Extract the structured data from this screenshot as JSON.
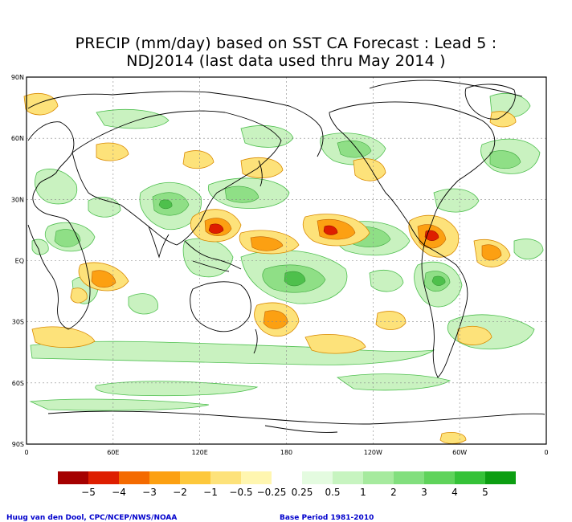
{
  "title": {
    "line1": "PRECIP (mm/day) based on SST CA Forecast : Lead 5 :",
    "line2": "NDJ2014 (last data used thru May 2014 )"
  },
  "axes": {
    "lat_labels": [
      "90N",
      "60N",
      "30N",
      "EQ",
      "30S",
      "60S",
      "90S"
    ],
    "lon_labels": [
      "0",
      "60E",
      "120E",
      "180",
      "120W",
      "60W",
      "0"
    ]
  },
  "legend": {
    "colors": [
      "#a50000",
      "#de1e00",
      "#f46a00",
      "#fca012",
      "#fdc83c",
      "#fde27a",
      "#fff6b0",
      "#ffffff",
      "#e4fbe0",
      "#c7f4c0",
      "#a6ea9e",
      "#82df7e",
      "#5fd35b",
      "#35c238",
      "#0c9e12"
    ],
    "labels": [
      "−5",
      "−4",
      "−3",
      "−2",
      "−1",
      "−0.5",
      "−0.25",
      "0.25",
      "0.5",
      "1",
      "2",
      "3",
      "4",
      "5"
    ]
  },
  "credits": {
    "left": "Huug van den Dool, CPC/NCEP/NWS/NOAA",
    "right": "Base Period 1981-2010"
  }
}
